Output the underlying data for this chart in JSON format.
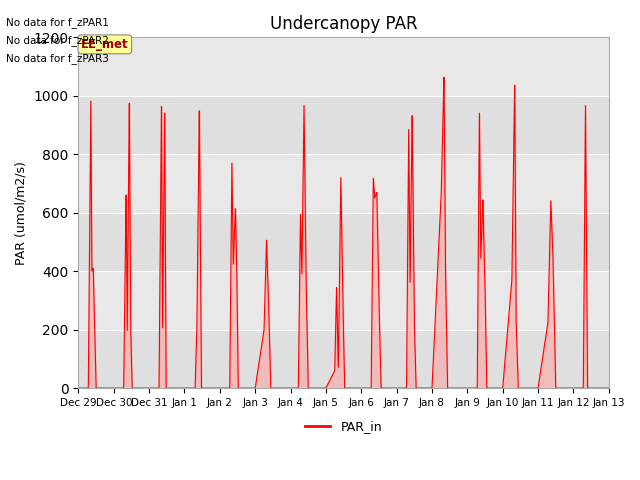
{
  "title": "Undercanopy PAR",
  "ylabel": "PAR (umol/m2/s)",
  "legend_label": "PAR_in",
  "line_color": "#ff0000",
  "fill_color": "#ff9999",
  "background_color": "#e8e8e8",
  "ylim": [
    0,
    1200
  ],
  "yticks": [
    0,
    200,
    400,
    600,
    800,
    1000,
    1200
  ],
  "xtick_labels": [
    "Dec 29",
    "Dec 30",
    "Dec 31",
    "Jan 1",
    "Jan 2",
    "Jan 3",
    "Jan 4",
    "Jan 5",
    "Jan 6",
    "Jan 7",
    "Jan 8",
    "Jan 9",
    "Jan 10",
    "Jan 11",
    "Jan 12",
    "Jan 13"
  ],
  "no_data_texts": [
    "No data for f_zPAR1",
    "No data for f_zPAR2",
    "No data for f_zPAR3"
  ],
  "ee_met_box_color": "#ffff99",
  "ee_met_text_color": "#990000",
  "day_profiles": [
    {
      "day": 0,
      "points": [
        [
          0.0,
          0
        ],
        [
          0.28,
          0
        ],
        [
          0.35,
          1005
        ],
        [
          0.38,
          400
        ],
        [
          0.42,
          410
        ],
        [
          0.5,
          0
        ],
        [
          1.0,
          0
        ]
      ]
    },
    {
      "day": 1,
      "points": [
        [
          0.0,
          0
        ],
        [
          0.28,
          0
        ],
        [
          0.35,
          680
        ],
        [
          0.38,
          180
        ],
        [
          0.44,
          1000
        ],
        [
          0.48,
          200
        ],
        [
          0.52,
          0
        ],
        [
          1.0,
          0
        ]
      ]
    },
    {
      "day": 2,
      "points": [
        [
          0.0,
          0
        ],
        [
          0.28,
          0
        ],
        [
          0.35,
          995
        ],
        [
          0.38,
          190
        ],
        [
          0.44,
          965
        ],
        [
          0.48,
          0
        ],
        [
          1.0,
          0
        ]
      ]
    },
    {
      "day": 3,
      "points": [
        [
          0.0,
          0
        ],
        [
          0.3,
          0
        ],
        [
          0.35,
          200
        ],
        [
          0.42,
          970
        ],
        [
          0.48,
          0
        ],
        [
          1.0,
          0
        ]
      ]
    },
    {
      "day": 4,
      "points": [
        [
          0.0,
          0
        ],
        [
          0.28,
          0
        ],
        [
          0.34,
          780
        ],
        [
          0.38,
          420
        ],
        [
          0.44,
          620
        ],
        [
          0.48,
          400
        ],
        [
          0.52,
          0
        ],
        [
          1.0,
          0
        ]
      ]
    },
    {
      "day": 5,
      "points": [
        [
          0.0,
          0
        ],
        [
          0.25,
          200
        ],
        [
          0.32,
          510
        ],
        [
          0.38,
          290
        ],
        [
          0.44,
          0
        ],
        [
          1.0,
          0
        ]
      ]
    },
    {
      "day": 6,
      "points": [
        [
          0.0,
          0
        ],
        [
          0.22,
          0
        ],
        [
          0.28,
          600
        ],
        [
          0.32,
          380
        ],
        [
          0.38,
          980
        ],
        [
          0.44,
          370
        ],
        [
          0.5,
          0
        ],
        [
          1.0,
          0
        ]
      ]
    },
    {
      "day": 7,
      "points": [
        [
          0.0,
          0
        ],
        [
          0.25,
          60
        ],
        [
          0.3,
          350
        ],
        [
          0.35,
          60
        ],
        [
          0.42,
          730
        ],
        [
          0.48,
          300
        ],
        [
          0.53,
          0
        ],
        [
          1.0,
          0
        ]
      ]
    },
    {
      "day": 8,
      "points": [
        [
          0.0,
          0
        ],
        [
          0.28,
          0
        ],
        [
          0.34,
          720
        ],
        [
          0.38,
          650
        ],
        [
          0.44,
          670
        ],
        [
          0.5,
          300
        ],
        [
          0.56,
          0
        ],
        [
          1.0,
          0
        ]
      ]
    },
    {
      "day": 9,
      "points": [
        [
          0.0,
          0
        ],
        [
          0.28,
          0
        ],
        [
          0.34,
          900
        ],
        [
          0.38,
          350
        ],
        [
          0.44,
          950
        ],
        [
          0.5,
          230
        ],
        [
          0.55,
          0
        ],
        [
          1.0,
          0
        ]
      ]
    },
    {
      "day": 10,
      "points": [
        [
          0.0,
          0
        ],
        [
          0.26,
          660
        ],
        [
          0.34,
          1075
        ],
        [
          0.38,
          430
        ],
        [
          0.44,
          0
        ],
        [
          1.0,
          0
        ]
      ]
    },
    {
      "day": 11,
      "points": [
        [
          0.0,
          0
        ],
        [
          0.28,
          0
        ],
        [
          0.34,
          955
        ],
        [
          0.38,
          440
        ],
        [
          0.44,
          650
        ],
        [
          0.5,
          350
        ],
        [
          0.55,
          0
        ],
        [
          1.0,
          0
        ]
      ]
    },
    {
      "day": 12,
      "points": [
        [
          0.0,
          0
        ],
        [
          0.26,
          370
        ],
        [
          0.34,
          1055
        ],
        [
          0.38,
          230
        ],
        [
          0.44,
          0
        ],
        [
          1.0,
          0
        ]
      ]
    },
    {
      "day": 13,
      "points": [
        [
          0.0,
          0
        ],
        [
          0.28,
          225
        ],
        [
          0.36,
          645
        ],
        [
          0.42,
          460
        ],
        [
          0.5,
          0
        ],
        [
          1.0,
          0
        ]
      ]
    },
    {
      "day": 14,
      "points": [
        [
          0.0,
          0
        ],
        [
          0.28,
          0
        ],
        [
          0.34,
          985
        ],
        [
          0.4,
          0
        ],
        [
          1.0,
          0
        ]
      ]
    }
  ]
}
